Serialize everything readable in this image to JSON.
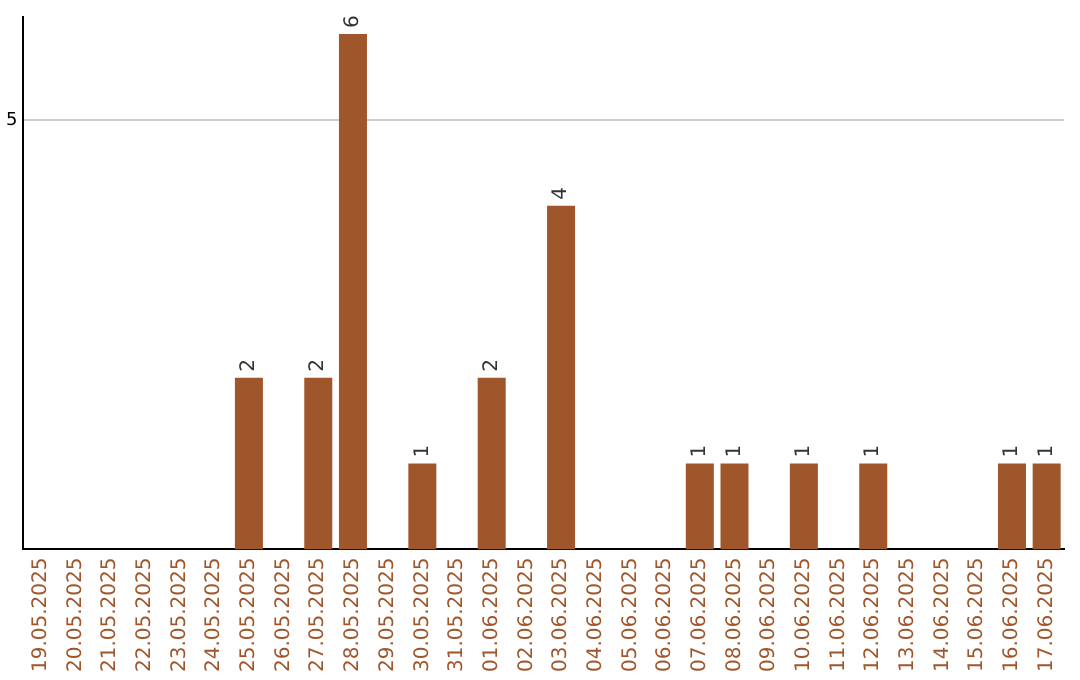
{
  "chart_data": {
    "type": "bar",
    "categories": [
      "19.05.2025",
      "20.05.2025",
      "21.05.2025",
      "22.05.2025",
      "23.05.2025",
      "24.05.2025",
      "25.05.2025",
      "26.05.2025",
      "27.05.2025",
      "28.05.2025",
      "29.05.2025",
      "30.05.2025",
      "31.05.2025",
      "01.06.2025",
      "02.06.2025",
      "03.06.2025",
      "04.06.2025",
      "05.06.2025",
      "06.06.2025",
      "07.06.2025",
      "08.06.2025",
      "09.06.2025",
      "10.06.2025",
      "11.06.2025",
      "12.06.2025",
      "13.06.2025",
      "14.06.2025",
      "15.06.2025",
      "16.06.2025",
      "17.06.2025"
    ],
    "values": [
      0,
      0,
      0,
      0,
      0,
      0,
      2,
      0,
      2,
      6,
      0,
      1,
      0,
      2,
      0,
      4,
      0,
      0,
      0,
      1,
      1,
      0,
      1,
      0,
      1,
      0,
      0,
      0,
      1,
      1
    ],
    "value_labels": [
      null,
      null,
      null,
      null,
      null,
      null,
      "2",
      null,
      "2",
      "6",
      null,
      "1",
      null,
      "2",
      null,
      "4",
      null,
      null,
      null,
      "1",
      "1",
      null,
      "1",
      null,
      "1",
      null,
      null,
      null,
      "1",
      "1"
    ],
    "color": "#a0562b",
    "ylim": [
      0,
      6.2
    ],
    "yticks": [
      5
    ],
    "grid": "y"
  }
}
